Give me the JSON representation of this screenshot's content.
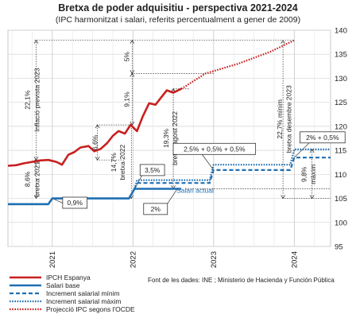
{
  "chart_data": {
    "type": "line",
    "title": "Bretxa de poder adquisitiu - perspectiva 2021-2024",
    "subtitle": "(IPC harmonitzat i salari, referits percentualment a gener de 2009)",
    "ylim": [
      95,
      140
    ],
    "yticks": [
      "95",
      "100",
      "105",
      "110",
      "115",
      "120",
      "125",
      "130",
      "135",
      "140"
    ],
    "xticks": [
      {
        "label": "2021",
        "pos": 2021.0
      },
      {
        "label": "2022",
        "pos": 2022.0
      },
      {
        "label": "2023",
        "pos": 2023.0
      },
      {
        "label": "2024",
        "pos": 2024.0
      }
    ],
    "xlim": [
      2020.45,
      2024.45
    ],
    "grid": true,
    "series": [
      {
        "name": "IPCH Espanya",
        "color": "#c8201f",
        "style": "solid",
        "x": [
          2020.45,
          2020.55,
          2020.65,
          2020.75,
          2020.85,
          2020.95,
          2021.05,
          2021.12,
          2021.2,
          2021.27,
          2021.35,
          2021.45,
          2021.52,
          2021.6,
          2021.68,
          2021.75,
          2021.82,
          2021.9,
          2021.97,
          2022.05,
          2022.12,
          2022.2,
          2022.28,
          2022.35,
          2022.42,
          2022.5,
          2022.6
        ],
        "y": [
          111.8,
          111.9,
          112.3,
          112.6,
          112.9,
          113.0,
          112.6,
          112.0,
          114.1,
          114.6,
          115.6,
          115.9,
          114.8,
          115.3,
          116.5,
          118.0,
          119.0,
          118.5,
          120.3,
          119.0,
          122.0,
          124.8,
          124.5,
          126.0,
          127.5,
          127.0,
          127.8
        ]
      },
      {
        "name": "Salari base",
        "color": "#1f6fb2",
        "style": "solid",
        "x": [
          2020.45,
          2020.95,
          2021.0,
          2021.95,
          2022.02,
          2022.6
        ],
        "y": [
          103.8,
          103.8,
          105.0,
          105.0,
          107.0,
          107.0
        ]
      },
      {
        "name": "Increment salarial mínim",
        "color": "#1f6fb2",
        "style": "dashed",
        "x": [
          2022.02,
          2022.05,
          2022.95,
          2023.0,
          2023.95,
          2024.0,
          2024.45
        ],
        "y": [
          107.0,
          108.2,
          108.2,
          110.9,
          110.9,
          113.5,
          113.5
        ]
      },
      {
        "name": "Increment salarial màxim",
        "color": "#1f6fb2",
        "style": "dotted",
        "x": [
          2022.02,
          2022.05,
          2022.95,
          2023.0,
          2023.95,
          2024.0,
          2024.45
        ],
        "y": [
          107.0,
          108.8,
          108.8,
          112.0,
          112.0,
          115.2,
          115.2
        ]
      },
      {
        "name": "Projecció IPC segons l'OCDE",
        "color": "#c8201f",
        "style": "dotted",
        "x": [
          2022.6,
          2022.9,
          2023.3,
          2023.7,
          2024.0
        ],
        "y": [
          127.8,
          131.0,
          133.0,
          135.5,
          137.9
        ]
      }
    ],
    "annotations": {
      "vertical": [
        {
          "text": "22,1%",
          "x": 2020.75
        },
        {
          "text": "Inflació prevista 2023",
          "x": 2020.87
        },
        {
          "text": "8,6%",
          "x": 2020.75
        },
        {
          "text": "bretxa 2021",
          "x": 2020.87
        },
        {
          "text": "6,6%",
          "x": 2021.59
        },
        {
          "text": "5%",
          "x": 2021.98
        },
        {
          "text": "9,1%",
          "x": 2021.98
        },
        {
          "text": "14,7%",
          "x": 2021.82
        },
        {
          "text": "bretxa 2022",
          "x": 2021.93
        },
        {
          "text": "19,3%",
          "x": 2022.47
        },
        {
          "text": "bretxa agost 2022",
          "x": 2022.58
        },
        {
          "text": "22,7% mínim",
          "x": 2023.88
        },
        {
          "text": "bretxa desembre 2023",
          "x": 2023.99
        },
        {
          "text": "9,8%",
          "x": 2024.18
        },
        {
          "text": "màxim",
          "x": 2024.29
        }
      ],
      "boxes": [
        {
          "text": "0,9%",
          "x": 2021.28,
          "y": 104.1
        },
        {
          "text": "3,5%",
          "x": 2022.24,
          "y": 110.9
        },
        {
          "text": "2%",
          "x": 2022.28,
          "y": 102.8
        },
        {
          "text": "2,5% + 0,5% + 0,5%",
          "x": 2023.01,
          "y": 115.3
        },
        {
          "text": "2% + 0,5%",
          "x": 2024.35,
          "y": 117.7
        }
      ],
      "labels": [
        {
          "text": "Salari actual",
          "x": 2022.77,
          "y": 106.2
        }
      ]
    },
    "source": "Font de les dades: INE ; Ministerio de Hacienda y Función Pública"
  }
}
